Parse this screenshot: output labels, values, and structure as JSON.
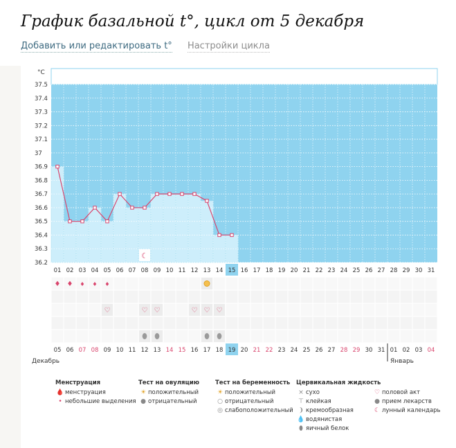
{
  "page": {
    "title": "График базальной t°, цикл от 5 декабря",
    "links": {
      "edit": "Добавить или редактировать t°",
      "settings": "Настройки цикла"
    }
  },
  "chart_data": {
    "type": "line",
    "ylabel": "°C",
    "ylim": [
      36.2,
      37.5
    ],
    "y_ticks": [
      "36.2",
      "36.3",
      "36.4",
      "36.5",
      "36.6",
      "36.7",
      "36.8",
      "36.9",
      "37",
      "37.1",
      "37.2",
      "37.3",
      "37.4",
      "37.5"
    ],
    "grid": true,
    "cycle_days": [
      "01",
      "02",
      "03",
      "04",
      "05",
      "06",
      "07",
      "08",
      "09",
      "10",
      "11",
      "12",
      "13",
      "14",
      "15",
      "16",
      "17",
      "18",
      "19",
      "20",
      "21",
      "22",
      "23",
      "24",
      "25",
      "26",
      "27",
      "28",
      "29",
      "30",
      "31"
    ],
    "current_cycle_day": "15",
    "series": [
      {
        "values": [
          36.9,
          36.5,
          36.5,
          36.6,
          36.5,
          36.7,
          36.6,
          36.6,
          36.7,
          36.7,
          36.7,
          36.7,
          36.65,
          36.4,
          36.4,
          null,
          null,
          null,
          null,
          null,
          null,
          null,
          null,
          null,
          null,
          null,
          null,
          null,
          null,
          null,
          null
        ]
      }
    ],
    "calendar_dates": [
      "05",
      "06",
      "07",
      "08",
      "09",
      "10",
      "11",
      "12",
      "13",
      "14",
      "15",
      "16",
      "17",
      "18",
      "19",
      "20",
      "21",
      "22",
      "23",
      "24",
      "25",
      "26",
      "27",
      "28",
      "29",
      "30",
      "31",
      "01",
      "02",
      "03",
      "04"
    ],
    "weekend_dates_index": [
      2,
      3,
      9,
      10,
      16,
      17,
      23,
      24,
      30
    ],
    "today_date": "19",
    "months": [
      {
        "label": "Декабрь",
        "start_index": 0
      },
      {
        "label": "Январь",
        "start_index": 27
      }
    ],
    "markers": {
      "moon": [
        8
      ],
      "menstruation_heavy": [
        1,
        2
      ],
      "menstruation_light": [
        3,
        4,
        5
      ],
      "ovulation_positive": [
        13
      ],
      "intercourse": [
        5,
        8,
        9,
        12,
        13,
        14
      ],
      "egg_white": [
        8,
        9,
        13,
        14
      ]
    }
  },
  "legend": [
    {
      "title": "Менструация",
      "items": [
        {
          "icon": "drops-icon",
          "glyph": "🩸",
          "label": "менструация"
        },
        {
          "icon": "drop-small-icon",
          "glyph": "•",
          "label": "небольшие выделения"
        }
      ]
    },
    {
      "title": "Тест на овуляцию",
      "items": [
        {
          "icon": "sun-positive-icon",
          "glyph": "☀",
          "label": "положительный"
        },
        {
          "icon": "circle-negative-icon",
          "glyph": "●",
          "label": "отрицательный"
        }
      ]
    },
    {
      "title": "Тест на беременность",
      "items": [
        {
          "icon": "sun-positive-icon",
          "glyph": "☀",
          "label": "положительный"
        },
        {
          "icon": "circle-negative-icon",
          "glyph": "○",
          "label": "отрицательный"
        },
        {
          "icon": "circle-weak-icon",
          "glyph": "◎",
          "label": "слабоположительный"
        }
      ]
    },
    {
      "title": "Цервикальная жидкость",
      "items": [
        {
          "icon": "dry-icon",
          "glyph": "×",
          "label": "сухо"
        },
        {
          "icon": "sticky-icon",
          "glyph": "⊤",
          "label": "клейкая"
        },
        {
          "icon": "creamy-icon",
          "glyph": "❩",
          "label": "кремообразная"
        },
        {
          "icon": "watery-icon",
          "glyph": "💧",
          "label": "водянистая"
        },
        {
          "icon": "egg-white-icon",
          "glyph": "⬮",
          "label": "яичный белок"
        }
      ]
    },
    {
      "title": "",
      "items": [
        {
          "icon": "heart-icon",
          "glyph": "♡",
          "label": "половой акт"
        },
        {
          "icon": "pill-icon",
          "glyph": "●",
          "label": "прием лекарств"
        },
        {
          "icon": "moon-icon",
          "glyph": "☾",
          "label": "лунный календарь"
        }
      ]
    }
  ],
  "colors": {
    "line": "#d9456d",
    "sky": "#8fd3ef",
    "bar": "#cdeefb",
    "grid": "#ffffff",
    "today": "#8fd3ef",
    "weekend": "#d9456d"
  }
}
